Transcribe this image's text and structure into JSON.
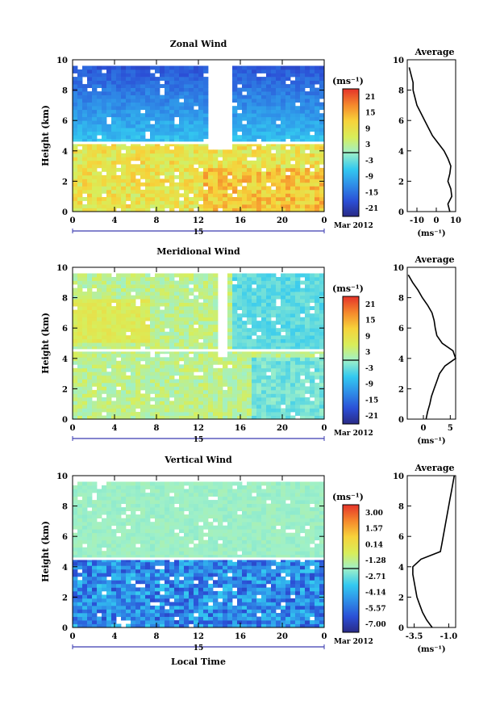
{
  "chart_data": [
    {
      "type": "heatmap",
      "title": "Zonal Wind",
      "xlabel": "",
      "ylabel": "Height (km)",
      "x_ticks": [
        "0",
        "4",
        "8",
        "12",
        "16",
        "20",
        "0"
      ],
      "y_ticks": [
        "0",
        "2",
        "4",
        "6",
        "8",
        "10"
      ],
      "date_marker": "15",
      "date_label": "Mar 2012",
      "colorbar": {
        "unit": "(ms⁻¹)",
        "ticks": [
          "21",
          "15",
          "9",
          "3",
          "-3",
          "-9",
          "-15",
          "-21"
        ],
        "range": [
          -24,
          24
        ]
      },
      "average_profile": {
        "title": "Average",
        "xlabel": "(ms⁻¹)",
        "x_ticks": [
          "-10",
          "0",
          "10"
        ],
        "xlim": [
          -15,
          10
        ],
        "y_ticks": [
          "0",
          "2",
          "4",
          "6",
          "8",
          "10"
        ],
        "height_km": [
          0,
          0.5,
          1,
          1.5,
          2,
          2.5,
          3,
          3.5,
          4,
          4.5,
          5,
          5.5,
          6,
          6.5,
          7,
          7.5,
          8,
          8.5,
          9,
          9.5
        ],
        "value": [
          7,
          6,
          8,
          7.5,
          6,
          7,
          7.5,
          6,
          4,
          1,
          -2,
          -4,
          -6,
          -8,
          -10,
          -11,
          -12,
          -12,
          -13,
          -14
        ]
      }
    },
    {
      "type": "heatmap",
      "title": "Meridional Wind",
      "xlabel": "",
      "ylabel": "Height (km)",
      "x_ticks": [
        "0",
        "4",
        "8",
        "12",
        "16",
        "20",
        "0"
      ],
      "y_ticks": [
        "0",
        "2",
        "4",
        "6",
        "8",
        "10"
      ],
      "date_marker": "15",
      "date_label": "Mar 2012",
      "colorbar": {
        "unit": "(ms⁻¹)",
        "ticks": [
          "21",
          "15",
          "9",
          "3",
          "-3",
          "-9",
          "-15",
          "-21"
        ],
        "range": [
          -24,
          24
        ]
      },
      "average_profile": {
        "title": "Average",
        "xlabel": "(ms⁻¹)",
        "x_ticks": [
          "0",
          "5"
        ],
        "xlim": [
          -3,
          6
        ],
        "y_ticks": [
          "0",
          "2",
          "4",
          "6",
          "8",
          "10"
        ],
        "height_km": [
          0,
          0.5,
          1,
          1.5,
          2,
          2.5,
          3,
          3.5,
          4,
          4.5,
          5,
          5.5,
          6,
          6.5,
          7,
          7.5,
          8,
          8.5,
          9,
          9.5
        ],
        "value": [
          0.5,
          0.8,
          1.2,
          1.5,
          2.0,
          2.5,
          3.0,
          4.0,
          6.0,
          5.5,
          3.5,
          2.5,
          2.2,
          2.0,
          1.6,
          0.8,
          -0.2,
          -1.0,
          -2.0,
          -2.8
        ]
      }
    },
    {
      "type": "heatmap",
      "title": "Vertical Wind",
      "xlabel": "Local Time",
      "ylabel": "Height (km)",
      "x_ticks": [
        "0",
        "4",
        "8",
        "12",
        "16",
        "20",
        "0"
      ],
      "y_ticks": [
        "0",
        "2",
        "4",
        "6",
        "8",
        "10"
      ],
      "date_marker": "15",
      "date_label": "Mar 2012",
      "colorbar": {
        "unit": "(ms⁻¹)",
        "ticks": [
          "3.00",
          "1.57",
          "0.14",
          "-1.28",
          "-2.71",
          "-4.14",
          "-5.57",
          "-7.00"
        ],
        "range": [
          -7.7,
          3.7
        ]
      },
      "average_profile": {
        "title": "Average",
        "xlabel": "(ms⁻¹)",
        "x_ticks": [
          "-3.5",
          "-1.0"
        ],
        "xlim": [
          -4.0,
          -0.5
        ],
        "y_ticks": [
          "0",
          "2",
          "4",
          "6",
          "8",
          "10"
        ],
        "height_km": [
          0,
          0.5,
          1,
          1.5,
          2,
          2.5,
          3,
          3.5,
          4,
          4.5,
          5,
          5.5,
          6,
          6.5,
          7,
          7.5,
          8,
          8.5,
          9,
          9.5,
          10
        ],
        "value": [
          -2.2,
          -2.6,
          -2.9,
          -3.1,
          -3.3,
          -3.4,
          -3.5,
          -3.6,
          -3.6,
          -3.0,
          -1.6,
          -1.5,
          -1.4,
          -1.3,
          -1.2,
          -1.1,
          -1.0,
          -0.9,
          -0.8,
          -0.7,
          -0.6
        ]
      }
    }
  ]
}
